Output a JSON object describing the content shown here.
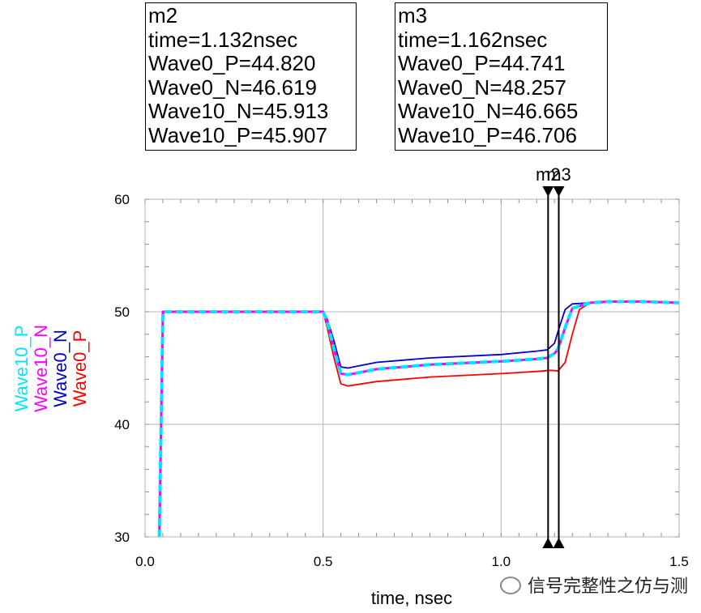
{
  "markers": [
    {
      "name": "m2",
      "time": "time=1.132nsec",
      "rows": [
        "Wave0_P=44.820",
        "Wave0_N=46.619",
        "Wave10_N=45.913",
        "Wave10_P=45.907"
      ],
      "x": 1.132
    },
    {
      "name": "m3",
      "time": "time=1.162nsec",
      "rows": [
        "Wave0_P=44.741",
        "Wave0_N=48.257",
        "Wave10_N=46.665",
        "Wave10_P=46.706"
      ],
      "x": 1.162
    }
  ],
  "watermark": "信号完整性之仿与测",
  "chart_data": {
    "type": "line",
    "xlabel": "time, nsec",
    "ylabel": "",
    "xlim": [
      0,
      1.5
    ],
    "ylim": [
      30,
      60
    ],
    "xticks": [
      "0.0",
      "0.5",
      "1.0",
      "1.5"
    ],
    "yticks": [
      "30",
      "40",
      "50",
      "60"
    ],
    "grid": true,
    "legend_position": "left-vertical",
    "series": [
      {
        "name": "Wave0_P",
        "color": "#ff0000",
        "dashed": false,
        "x": [
          0.04,
          0.05,
          0.5,
          0.51,
          0.53,
          0.55,
          0.57,
          0.65,
          0.8,
          1.0,
          1.1,
          1.14,
          1.16,
          1.18,
          1.2,
          1.22,
          1.25,
          1.3,
          1.4,
          1.5
        ],
        "y": [
          30,
          50,
          50,
          48.8,
          46.0,
          43.6,
          43.4,
          43.8,
          44.2,
          44.5,
          44.7,
          44.8,
          44.74,
          45.5,
          48.0,
          50.2,
          50.8,
          50.9,
          50.9,
          50.8
        ]
      },
      {
        "name": "Wave0_N",
        "color": "#0000cc",
        "dashed": false,
        "x": [
          0.04,
          0.05,
          0.5,
          0.51,
          0.53,
          0.55,
          0.57,
          0.65,
          0.8,
          1.0,
          1.1,
          1.13,
          1.15,
          1.16,
          1.18,
          1.2,
          1.25,
          1.3,
          1.4,
          1.5
        ],
        "y": [
          30,
          50,
          50,
          49.5,
          47.5,
          45.1,
          45.0,
          45.5,
          45.9,
          46.2,
          46.5,
          46.62,
          47.2,
          48.26,
          50.2,
          50.7,
          50.8,
          50.9,
          50.9,
          50.8
        ]
      },
      {
        "name": "Wave10_N",
        "color": "#ff00ff",
        "dashed": false,
        "x": [
          0.04,
          0.05,
          0.5,
          0.51,
          0.53,
          0.55,
          0.57,
          0.65,
          0.8,
          1.0,
          1.1,
          1.13,
          1.15,
          1.16,
          1.18,
          1.2,
          1.25,
          1.3,
          1.4,
          1.5
        ],
        "y": [
          30,
          50,
          50,
          49.3,
          46.8,
          44.5,
          44.4,
          44.9,
          45.3,
          45.6,
          45.8,
          45.91,
          46.3,
          46.67,
          48.6,
          50.3,
          50.8,
          50.9,
          50.9,
          50.8
        ]
      },
      {
        "name": "Wave10_P",
        "color": "#00e5ff",
        "dashed": true,
        "x": [
          0.04,
          0.05,
          0.5,
          0.51,
          0.53,
          0.55,
          0.57,
          0.65,
          0.8,
          1.0,
          1.1,
          1.13,
          1.15,
          1.16,
          1.18,
          1.2,
          1.25,
          1.3,
          1.4,
          1.5
        ],
        "y": [
          30,
          50,
          50,
          49.3,
          46.8,
          44.5,
          44.4,
          44.9,
          45.3,
          45.6,
          45.8,
          45.91,
          46.3,
          46.71,
          48.6,
          50.3,
          50.8,
          50.9,
          50.9,
          50.8
        ]
      }
    ]
  }
}
